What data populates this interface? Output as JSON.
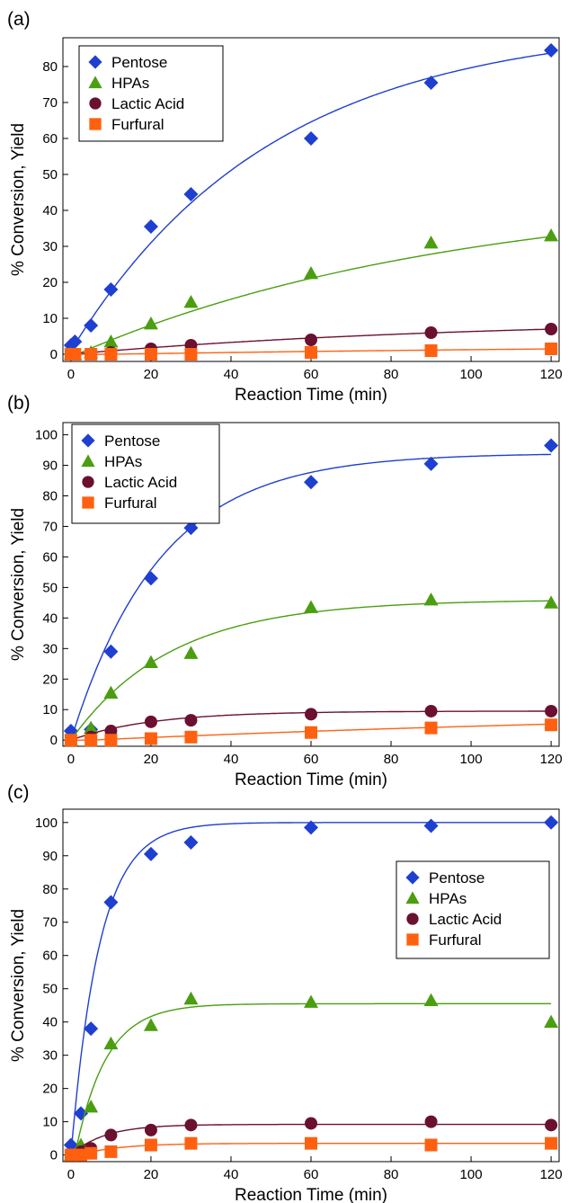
{
  "series_styles": [
    {
      "name": "Pentose",
      "color": "#1f3fd0",
      "marker": "diamond"
    },
    {
      "name": "HPAs",
      "color": "#4a9e10",
      "marker": "triangle"
    },
    {
      "name": "Lactic Acid",
      "color": "#6b1030",
      "marker": "circle"
    },
    {
      "name": "Furfural",
      "color": "#ff6010",
      "marker": "square"
    }
  ],
  "chart_data": [
    {
      "type": "scatter",
      "panel_label": "(a)",
      "xlabel": "Reaction Time (min)",
      "ylabel": "% Conversion, Yield",
      "xlim": [
        -2,
        122
      ],
      "ylim": [
        -2,
        88
      ],
      "xticks": [
        0,
        20,
        40,
        60,
        80,
        100,
        120
      ],
      "yticks": [
        0,
        10,
        20,
        30,
        40,
        50,
        60,
        70,
        80
      ],
      "legend": "top-left",
      "series": [
        {
          "name": "Pentose",
          "x": [
            0,
            1,
            5,
            10,
            20,
            30,
            60,
            90,
            120
          ],
          "y": [
            2.5,
            3.5,
            8,
            18,
            35.5,
            44.5,
            60,
            75.5,
            84.5
          ],
          "fit": {
            "A": 91,
            "k": 0.02,
            "t0": 0,
            "c": 1
          }
        },
        {
          "name": "HPAs",
          "x": [
            0,
            1,
            5,
            10,
            20,
            30,
            60,
            90,
            120
          ],
          "y": [
            0,
            0,
            0.5,
            3.5,
            8.5,
            14.5,
            22.5,
            31,
            33
          ],
          "fit": {
            "A": 46,
            "k": 0.0105,
            "t0": 1.5,
            "c": 0
          }
        },
        {
          "name": "Lactic Acid",
          "x": [
            0,
            1,
            5,
            10,
            20,
            30,
            60,
            90,
            120
          ],
          "y": [
            0,
            0,
            0,
            0.5,
            1.5,
            2.5,
            4,
            6,
            7
          ],
          "fit": {
            "A": 10,
            "k": 0.01,
            "t0": 0,
            "c": 0
          }
        },
        {
          "name": "Furfural",
          "x": [
            0,
            1,
            5,
            10,
            20,
            30,
            60,
            90,
            120
          ],
          "y": [
            0,
            0,
            0,
            0,
            0,
            0,
            0.5,
            1,
            1.5
          ],
          "fit": {
            "A": 3.5,
            "k": 0.005,
            "t0": 10,
            "c": 0
          }
        }
      ]
    },
    {
      "type": "scatter",
      "panel_label": "(b)",
      "xlabel": "Reaction Time (min)",
      "ylabel": "% Conversion, Yield",
      "xlim": [
        -2,
        122
      ],
      "ylim": [
        -2,
        104
      ],
      "xticks": [
        0,
        20,
        40,
        60,
        80,
        100,
        120
      ],
      "yticks": [
        0,
        10,
        20,
        30,
        40,
        50,
        60,
        70,
        80,
        90,
        100
      ],
      "legend": "top-left",
      "series": [
        {
          "name": "Pentose",
          "x": [
            0,
            5,
            10,
            20,
            30,
            60,
            90,
            120
          ],
          "y": [
            3,
            3.5,
            29,
            53,
            69.5,
            84.5,
            90.5,
            96.5
          ],
          "fit": {
            "A": 94,
            "k": 0.045,
            "t0": 0,
            "c": 0
          }
        },
        {
          "name": "HPAs",
          "x": [
            0,
            5,
            10,
            20,
            30,
            60,
            90,
            120
          ],
          "y": [
            0,
            4,
            15.5,
            25.5,
            28.5,
            43.5,
            46,
            45
          ],
          "fit": {
            "A": 46,
            "k": 0.04,
            "t0": 0,
            "c": 0
          }
        },
        {
          "name": "Lactic Acid",
          "x": [
            0,
            5,
            10,
            20,
            30,
            60,
            90,
            120
          ],
          "y": [
            0,
            1,
            3,
            6,
            6.5,
            8.5,
            9.5,
            9.5
          ],
          "fit": {
            "A": 9.5,
            "k": 0.05,
            "t0": 0,
            "c": 0
          }
        },
        {
          "name": "Furfural",
          "x": [
            0,
            5,
            10,
            20,
            30,
            60,
            90,
            120
          ],
          "y": [
            0,
            0,
            0,
            0.5,
            1,
            2.5,
            4,
            5
          ],
          "fit": {
            "A": 12,
            "k": 0.005,
            "t0": 5,
            "c": 0
          }
        }
      ]
    },
    {
      "type": "scatter",
      "panel_label": "(c)",
      "xlabel": "Reaction Time (min)",
      "ylabel": "% Conversion, Yield",
      "xlim": [
        -2,
        122
      ],
      "ylim": [
        -2,
        104
      ],
      "xticks": [
        0,
        20,
        40,
        60,
        80,
        100,
        120
      ],
      "yticks": [
        0,
        10,
        20,
        30,
        40,
        50,
        60,
        70,
        80,
        90,
        100
      ],
      "legend": "top-right",
      "series": [
        {
          "name": "Pentose",
          "x": [
            0,
            2.5,
            5,
            10,
            20,
            30,
            60,
            90,
            120
          ],
          "y": [
            3,
            12.5,
            38,
            76,
            90.5,
            94,
            98.5,
            99,
            100
          ],
          "fit": {
            "A": 100,
            "k": 0.14,
            "t0": 0,
            "c": 0
          }
        },
        {
          "name": "HPAs",
          "x": [
            0,
            2.5,
            5,
            10,
            20,
            30,
            60,
            90,
            120
          ],
          "y": [
            0,
            3,
            14.5,
            33.5,
            39,
            47,
            46,
            46.5,
            40
          ],
          "fit": {
            "A": 45.5,
            "k": 0.13,
            "t0": 1,
            "c": 0
          }
        },
        {
          "name": "Lactic Acid",
          "x": [
            0,
            2.5,
            5,
            10,
            20,
            30,
            60,
            90,
            120
          ],
          "y": [
            0,
            1,
            2,
            6,
            7.5,
            9,
            9.5,
            10,
            9
          ],
          "fit": {
            "A": 9.2,
            "k": 0.12,
            "t0": 0,
            "c": 0
          }
        },
        {
          "name": "Furfural",
          "x": [
            0,
            2.5,
            5,
            10,
            20,
            30,
            60,
            90,
            120
          ],
          "y": [
            0,
            0,
            0.5,
            1,
            3,
            3.5,
            3.5,
            3,
            3.5
          ],
          "fit": {
            "A": 3.5,
            "k": 0.1,
            "t0": 2,
            "c": 0
          }
        }
      ]
    }
  ]
}
